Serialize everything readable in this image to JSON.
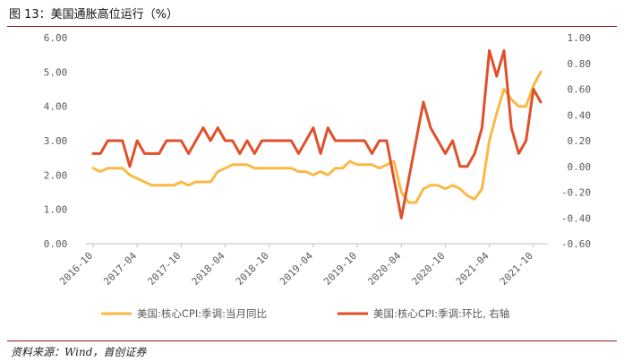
{
  "header": {
    "title": "图 13：美国通胀高位运行（%）"
  },
  "footer": {
    "source": "资料来源：Wind，首创证券"
  },
  "colors": {
    "core_cpi_yoy": "#F9B944",
    "core_cpi_mom": "#E0502A",
    "frame": "#8B1A1A",
    "axis": "#BFBFBF",
    "text": "#595959"
  },
  "chart_data": {
    "type": "line",
    "x_tick_labels": [
      "2016-10",
      "2017-04",
      "2017-10",
      "2018-04",
      "2018-10",
      "2019-04",
      "2019-10",
      "2020-04",
      "2020-10",
      "2021-04",
      "2021-10"
    ],
    "x": [
      "2016-10",
      "2016-11",
      "2016-12",
      "2017-01",
      "2017-02",
      "2017-03",
      "2017-04",
      "2017-05",
      "2017-06",
      "2017-07",
      "2017-08",
      "2017-09",
      "2017-10",
      "2017-11",
      "2017-12",
      "2018-01",
      "2018-02",
      "2018-03",
      "2018-04",
      "2018-05",
      "2018-06",
      "2018-07",
      "2018-08",
      "2018-09",
      "2018-10",
      "2018-11",
      "2018-12",
      "2019-01",
      "2019-02",
      "2019-03",
      "2019-04",
      "2019-05",
      "2019-06",
      "2019-07",
      "2019-08",
      "2019-09",
      "2019-10",
      "2019-11",
      "2019-12",
      "2020-01",
      "2020-02",
      "2020-03",
      "2020-04",
      "2020-05",
      "2020-06",
      "2020-07",
      "2020-08",
      "2020-09",
      "2020-10",
      "2020-11",
      "2020-12",
      "2021-01",
      "2021-02",
      "2021-03",
      "2021-04",
      "2021-05",
      "2021-06",
      "2021-07",
      "2021-08",
      "2021-09",
      "2021-10",
      "2021-11"
    ],
    "left_axis": {
      "ylim": [
        0,
        6
      ],
      "ticks": [
        "0.00",
        "1.00",
        "2.00",
        "3.00",
        "4.00",
        "5.00",
        "6.00"
      ]
    },
    "right_axis": {
      "ylim": [
        -0.6,
        1.0
      ],
      "ticks": [
        "-0.60",
        "-0.40",
        "-0.20",
        "0.00",
        "0.20",
        "0.40",
        "0.60",
        "0.80",
        "1.00"
      ]
    },
    "series": [
      {
        "name": "美国:核心CPI:季调:当月同比",
        "axis": "left",
        "values": [
          2.2,
          2.1,
          2.2,
          2.2,
          2.2,
          2.0,
          1.9,
          1.8,
          1.7,
          1.7,
          1.7,
          1.7,
          1.8,
          1.7,
          1.8,
          1.8,
          1.8,
          2.1,
          2.2,
          2.3,
          2.3,
          2.3,
          2.2,
          2.2,
          2.2,
          2.2,
          2.2,
          2.2,
          2.1,
          2.1,
          2.0,
          2.1,
          2.0,
          2.2,
          2.2,
          2.4,
          2.3,
          2.3,
          2.3,
          2.2,
          2.3,
          2.4,
          1.5,
          1.2,
          1.2,
          1.6,
          1.7,
          1.7,
          1.6,
          1.7,
          1.6,
          1.4,
          1.3,
          1.6,
          3.0,
          3.8,
          4.5,
          4.2,
          4.0,
          4.0,
          4.6,
          5.0
        ]
      },
      {
        "name": "美国:核心CPI:季调:环比, 右轴",
        "axis": "right",
        "values": [
          0.1,
          0.1,
          0.2,
          0.2,
          0.2,
          0.0,
          0.2,
          0.1,
          0.1,
          0.1,
          0.2,
          0.2,
          0.2,
          0.1,
          0.2,
          0.3,
          0.2,
          0.3,
          0.2,
          0.2,
          0.1,
          0.2,
          0.1,
          0.2,
          0.2,
          0.2,
          0.2,
          0.2,
          0.1,
          0.2,
          0.3,
          0.1,
          0.3,
          0.2,
          0.2,
          0.2,
          0.2,
          0.2,
          0.1,
          0.2,
          0.2,
          -0.1,
          -0.4,
          -0.1,
          0.2,
          0.5,
          0.3,
          0.2,
          0.1,
          0.2,
          0.0,
          0.0,
          0.1,
          0.3,
          0.9,
          0.7,
          0.9,
          0.3,
          0.1,
          0.2,
          0.6,
          0.5
        ]
      }
    ],
    "legend": "bottom"
  }
}
